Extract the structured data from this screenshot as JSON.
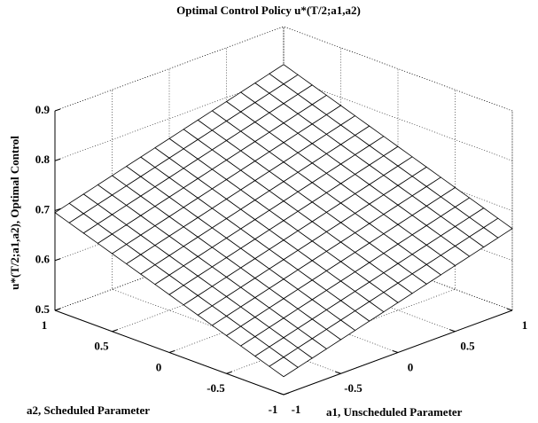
{
  "chart_data": {
    "type": "surface",
    "title": "Optimal Control Policy u*(T/2;a1,a2)",
    "xlabel": "a1, Unscheduled Parameter",
    "ylabel": "a2, Scheduled Parameter",
    "zlabel": "u*(T/2;a1,a2), Optimal Control",
    "x": [
      -1,
      -0.875,
      -0.75,
      -0.625,
      -0.5,
      -0.375,
      -0.25,
      -0.125,
      0,
      0.125,
      0.25,
      0.375,
      0.5,
      0.625,
      0.75,
      0.875,
      1
    ],
    "y": [
      -1,
      -0.875,
      -0.75,
      -0.625,
      -0.5,
      -0.375,
      -0.25,
      -0.125,
      0,
      0.125,
      0.25,
      0.375,
      0.5,
      0.625,
      0.75,
      0.875,
      1
    ],
    "z": [
      [
        0.536,
        0.544,
        0.552,
        0.56,
        0.568,
        0.576,
        0.584,
        0.592,
        0.6,
        0.608,
        0.616,
        0.624,
        0.632,
        0.64,
        0.648,
        0.656,
        0.664
      ],
      [
        0.546,
        0.554,
        0.562,
        0.57,
        0.578,
        0.586,
        0.594,
        0.602,
        0.61,
        0.618,
        0.626,
        0.634,
        0.642,
        0.65,
        0.658,
        0.666,
        0.674
      ],
      [
        0.556,
        0.564,
        0.572,
        0.58,
        0.588,
        0.596,
        0.604,
        0.612,
        0.62,
        0.628,
        0.636,
        0.644,
        0.652,
        0.66,
        0.668,
        0.676,
        0.684
      ],
      [
        0.566,
        0.574,
        0.582,
        0.59,
        0.598,
        0.606,
        0.614,
        0.622,
        0.63,
        0.638,
        0.646,
        0.654,
        0.662,
        0.67,
        0.678,
        0.686,
        0.694
      ],
      [
        0.576,
        0.584,
        0.592,
        0.6,
        0.608,
        0.616,
        0.624,
        0.632,
        0.64,
        0.648,
        0.656,
        0.664,
        0.672,
        0.68,
        0.688,
        0.696,
        0.704
      ],
      [
        0.586,
        0.594,
        0.602,
        0.61,
        0.618,
        0.626,
        0.634,
        0.642,
        0.65,
        0.658,
        0.666,
        0.674,
        0.682,
        0.69,
        0.698,
        0.706,
        0.714
      ],
      [
        0.596,
        0.604,
        0.612,
        0.62,
        0.628,
        0.636,
        0.644,
        0.652,
        0.66,
        0.668,
        0.676,
        0.684,
        0.692,
        0.7,
        0.708,
        0.716,
        0.724
      ],
      [
        0.606,
        0.614,
        0.622,
        0.63,
        0.638,
        0.646,
        0.654,
        0.662,
        0.67,
        0.678,
        0.686,
        0.694,
        0.702,
        0.71,
        0.718,
        0.726,
        0.734
      ],
      [
        0.616,
        0.624,
        0.632,
        0.64,
        0.648,
        0.656,
        0.664,
        0.672,
        0.68,
        0.688,
        0.696,
        0.704,
        0.712,
        0.72,
        0.728,
        0.736,
        0.744
      ],
      [
        0.626,
        0.634,
        0.642,
        0.65,
        0.658,
        0.666,
        0.674,
        0.682,
        0.69,
        0.698,
        0.706,
        0.714,
        0.722,
        0.73,
        0.738,
        0.746,
        0.754
      ],
      [
        0.636,
        0.644,
        0.652,
        0.66,
        0.668,
        0.676,
        0.684,
        0.692,
        0.7,
        0.708,
        0.716,
        0.724,
        0.732,
        0.74,
        0.748,
        0.756,
        0.764
      ],
      [
        0.646,
        0.654,
        0.662,
        0.67,
        0.678,
        0.686,
        0.694,
        0.702,
        0.71,
        0.718,
        0.726,
        0.734,
        0.742,
        0.75,
        0.758,
        0.766,
        0.774
      ],
      [
        0.656,
        0.664,
        0.672,
        0.68,
        0.688,
        0.696,
        0.704,
        0.712,
        0.72,
        0.728,
        0.736,
        0.744,
        0.752,
        0.76,
        0.768,
        0.776,
        0.784
      ],
      [
        0.666,
        0.674,
        0.682,
        0.69,
        0.698,
        0.706,
        0.714,
        0.722,
        0.73,
        0.738,
        0.746,
        0.754,
        0.762,
        0.77,
        0.778,
        0.786,
        0.794
      ],
      [
        0.676,
        0.684,
        0.692,
        0.7,
        0.708,
        0.716,
        0.724,
        0.732,
        0.74,
        0.748,
        0.756,
        0.764,
        0.772,
        0.78,
        0.788,
        0.796,
        0.804
      ],
      [
        0.686,
        0.694,
        0.702,
        0.71,
        0.718,
        0.726,
        0.734,
        0.742,
        0.75,
        0.758,
        0.766,
        0.774,
        0.782,
        0.79,
        0.798,
        0.806,
        0.814
      ],
      [
        0.696,
        0.704,
        0.712,
        0.72,
        0.728,
        0.736,
        0.744,
        0.752,
        0.76,
        0.768,
        0.776,
        0.784,
        0.792,
        0.8,
        0.808,
        0.816,
        0.824
      ]
    ],
    "xlim": [
      -1,
      1
    ],
    "ylim": [
      -1,
      1
    ],
    "zlim": [
      0.5,
      0.9
    ],
    "xticks": [
      -1,
      -0.5,
      0,
      0.5,
      1
    ],
    "yticks": [
      -1,
      -0.5,
      0,
      0.5,
      1
    ],
    "zticks": [
      0.5,
      0.6,
      0.7,
      0.8,
      0.9
    ],
    "grid": true,
    "color": "#ffffff",
    "edgecolor": "#000000"
  }
}
